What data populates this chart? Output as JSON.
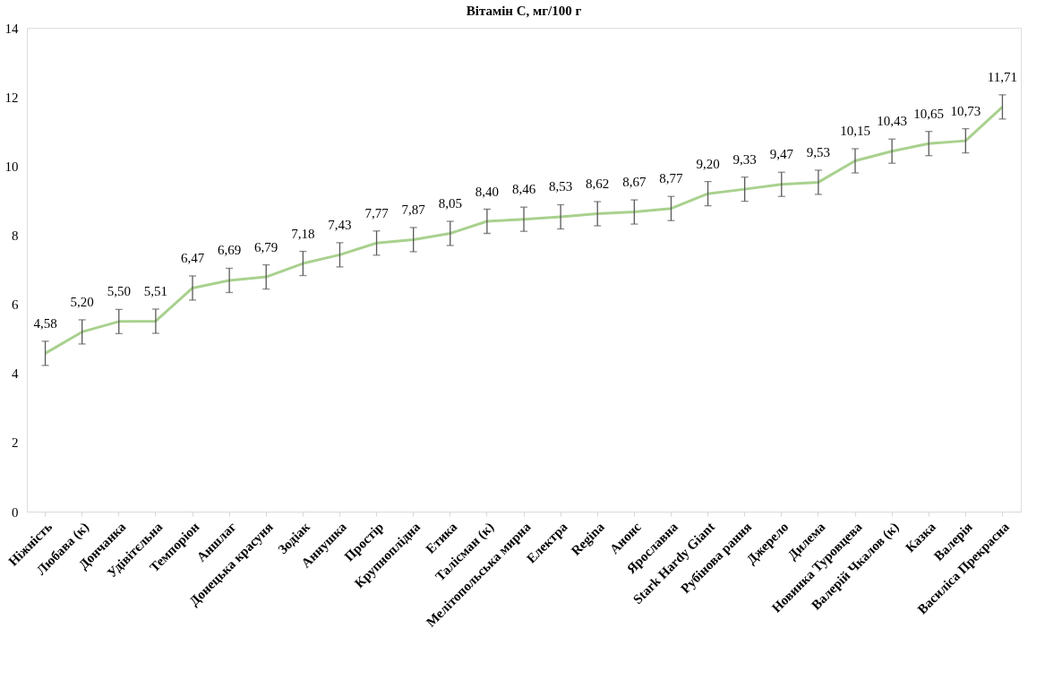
{
  "chart_data": {
    "type": "line",
    "title": "Вітамін С, мг/100 г",
    "categories": [
      "Ніжність",
      "Любава (к)",
      "Дончанка",
      "Удівітєльна",
      "Темпоріон",
      "Аншлаг",
      "Донецька красуня",
      "Зодіак",
      "Аннушка",
      "Простір",
      "Крупноплідна",
      "Етика",
      "Талісман (к)",
      "Мелітопольська мирна",
      "Електра",
      "Regina",
      "Анонс",
      "Ярославна",
      "Stark Hardy Giant",
      "Рубінова рання",
      "Джерело",
      "Дилема",
      "Новинка Туровцева",
      "Валерій Чкалов (к)",
      "Казка",
      "Валерія",
      "Василіса Прекрасна"
    ],
    "series": [
      {
        "color": "#a9d18e",
        "values": [
          4.58,
          5.2,
          5.5,
          5.51,
          6.47,
          6.69,
          6.79,
          7.18,
          7.43,
          7.77,
          7.87,
          8.05,
          8.4,
          8.46,
          8.53,
          8.62,
          8.67,
          8.77,
          9.2,
          9.33,
          9.47,
          9.53,
          10.15,
          10.43,
          10.65,
          10.73,
          11.71
        ],
        "value_labels": [
          "4,58",
          "5,20",
          "5,50",
          "5,51",
          "6,47",
          "6,69",
          "6,79",
          "7,18",
          "7,43",
          "7,77",
          "7,87",
          "8,05",
          "8,40",
          "8,46",
          "8,53",
          "8,62",
          "8,67",
          "8,77",
          "9,20",
          "9,33",
          "9,47",
          "9,53",
          "10,15",
          "10,43",
          "10,65",
          "10,73",
          "11,71"
        ],
        "errors": [
          0.35,
          0.35,
          0.35,
          0.35,
          0.35,
          0.35,
          0.35,
          0.35,
          0.35,
          0.35,
          0.35,
          0.35,
          0.35,
          0.35,
          0.35,
          0.35,
          0.35,
          0.35,
          0.35,
          0.35,
          0.35,
          0.35,
          0.35,
          0.35,
          0.35,
          0.35,
          0.35
        ]
      }
    ],
    "ylim": [
      0,
      14
    ],
    "yticks": [
      0,
      2,
      4,
      6,
      8,
      10,
      12,
      14
    ],
    "grid": false,
    "marker": "none",
    "line_style": "solid"
  }
}
